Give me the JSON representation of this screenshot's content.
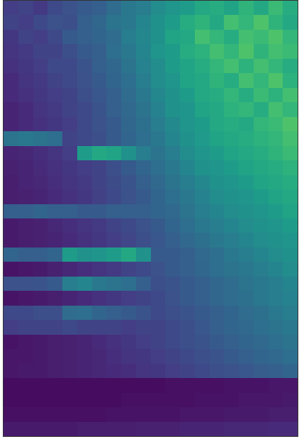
{
  "chart_data": {
    "type": "heatmap",
    "color": "Viridis",
    "tick_labels": false,
    "grid": false,
    "xlim": [
      -0.5,
      19.5
    ],
    "ylim": [
      29.5,
      -0.5
    ],
    "zlim": [
      0,
      1
    ],
    "cells": [
      [
        0.18,
        0.2,
        0.17,
        0.22,
        0.25,
        0.28,
        0.3,
        0.35,
        0.4,
        0.42,
        0.48,
        0.52,
        0.55,
        0.6,
        0.62,
        0.58,
        0.65,
        0.6,
        0.68,
        0.62
      ],
      [
        0.2,
        0.18,
        0.22,
        0.25,
        0.24,
        0.3,
        0.33,
        0.38,
        0.4,
        0.45,
        0.5,
        0.55,
        0.62,
        0.65,
        0.6,
        0.7,
        0.66,
        0.72,
        0.65,
        0.6
      ],
      [
        0.16,
        0.2,
        0.18,
        0.22,
        0.28,
        0.3,
        0.32,
        0.35,
        0.42,
        0.46,
        0.5,
        0.58,
        0.6,
        0.7,
        0.66,
        0.62,
        0.7,
        0.68,
        0.72,
        0.66
      ],
      [
        0.15,
        0.17,
        0.2,
        0.2,
        0.24,
        0.28,
        0.3,
        0.36,
        0.4,
        0.45,
        0.52,
        0.55,
        0.62,
        0.64,
        0.7,
        0.66,
        0.72,
        0.65,
        0.7,
        0.68
      ],
      [
        0.14,
        0.16,
        0.18,
        0.22,
        0.22,
        0.26,
        0.3,
        0.33,
        0.38,
        0.44,
        0.48,
        0.55,
        0.58,
        0.62,
        0.66,
        0.7,
        0.64,
        0.7,
        0.66,
        0.62
      ],
      [
        0.12,
        0.15,
        0.17,
        0.2,
        0.22,
        0.25,
        0.28,
        0.32,
        0.36,
        0.42,
        0.48,
        0.52,
        0.58,
        0.6,
        0.65,
        0.62,
        0.7,
        0.66,
        0.72,
        0.64
      ],
      [
        0.12,
        0.14,
        0.16,
        0.18,
        0.2,
        0.24,
        0.27,
        0.3,
        0.35,
        0.4,
        0.46,
        0.5,
        0.55,
        0.6,
        0.62,
        0.66,
        0.62,
        0.68,
        0.64,
        0.7
      ],
      [
        0.1,
        0.12,
        0.15,
        0.17,
        0.2,
        0.22,
        0.26,
        0.3,
        0.34,
        0.38,
        0.44,
        0.5,
        0.52,
        0.58,
        0.6,
        0.64,
        0.66,
        0.62,
        0.7,
        0.66
      ],
      [
        0.1,
        0.12,
        0.14,
        0.16,
        0.18,
        0.22,
        0.25,
        0.28,
        0.33,
        0.37,
        0.42,
        0.47,
        0.52,
        0.55,
        0.6,
        0.62,
        0.6,
        0.66,
        0.68,
        0.72
      ],
      [
        0.38,
        0.4,
        0.38,
        0.36,
        0.2,
        0.22,
        0.24,
        0.28,
        0.32,
        0.36,
        0.4,
        0.45,
        0.5,
        0.54,
        0.58,
        0.6,
        0.62,
        0.64,
        0.66,
        0.7
      ],
      [
        0.1,
        0.11,
        0.13,
        0.15,
        0.18,
        0.55,
        0.6,
        0.58,
        0.5,
        0.42,
        0.38,
        0.42,
        0.48,
        0.52,
        0.55,
        0.58,
        0.6,
        0.62,
        0.65,
        0.68
      ],
      [
        0.09,
        0.1,
        0.12,
        0.14,
        0.16,
        0.18,
        0.2,
        0.24,
        0.28,
        0.32,
        0.36,
        0.4,
        0.45,
        0.5,
        0.52,
        0.55,
        0.58,
        0.6,
        0.62,
        0.64
      ],
      [
        0.08,
        0.1,
        0.11,
        0.13,
        0.15,
        0.17,
        0.2,
        0.23,
        0.26,
        0.3,
        0.34,
        0.38,
        0.42,
        0.46,
        0.5,
        0.52,
        0.55,
        0.58,
        0.6,
        0.62
      ],
      [
        0.08,
        0.09,
        0.1,
        0.12,
        0.14,
        0.16,
        0.19,
        0.22,
        0.25,
        0.28,
        0.32,
        0.36,
        0.4,
        0.44,
        0.48,
        0.5,
        0.52,
        0.55,
        0.58,
        0.6
      ],
      [
        0.3,
        0.3,
        0.32,
        0.3,
        0.3,
        0.28,
        0.28,
        0.3,
        0.3,
        0.3,
        0.32,
        0.34,
        0.38,
        0.42,
        0.45,
        0.48,
        0.5,
        0.52,
        0.55,
        0.58
      ],
      [
        0.07,
        0.08,
        0.09,
        0.11,
        0.13,
        0.15,
        0.17,
        0.2,
        0.22,
        0.25,
        0.28,
        0.32,
        0.36,
        0.4,
        0.42,
        0.45,
        0.48,
        0.5,
        0.52,
        0.55
      ],
      [
        0.07,
        0.08,
        0.09,
        0.1,
        0.12,
        0.14,
        0.16,
        0.18,
        0.21,
        0.24,
        0.27,
        0.3,
        0.34,
        0.37,
        0.4,
        0.42,
        0.45,
        0.48,
        0.5,
        0.52
      ],
      [
        0.32,
        0.3,
        0.3,
        0.32,
        0.55,
        0.5,
        0.52,
        0.55,
        0.6,
        0.5,
        0.28,
        0.28,
        0.3,
        0.34,
        0.36,
        0.4,
        0.42,
        0.45,
        0.48,
        0.5
      ],
      [
        0.05,
        0.06,
        0.07,
        0.09,
        0.11,
        0.13,
        0.15,
        0.17,
        0.2,
        0.22,
        0.25,
        0.28,
        0.3,
        0.33,
        0.36,
        0.38,
        0.4,
        0.42,
        0.45,
        0.48
      ],
      [
        0.25,
        0.25,
        0.26,
        0.28,
        0.42,
        0.45,
        0.4,
        0.38,
        0.36,
        0.3,
        0.24,
        0.26,
        0.28,
        0.3,
        0.33,
        0.35,
        0.38,
        0.4,
        0.42,
        0.45
      ],
      [
        0.05,
        0.06,
        0.07,
        0.08,
        0.1,
        0.12,
        0.14,
        0.16,
        0.18,
        0.2,
        0.22,
        0.25,
        0.28,
        0.3,
        0.33,
        0.35,
        0.37,
        0.4,
        0.42,
        0.44
      ],
      [
        0.22,
        0.22,
        0.24,
        0.24,
        0.35,
        0.36,
        0.32,
        0.3,
        0.28,
        0.26,
        0.22,
        0.24,
        0.26,
        0.28,
        0.3,
        0.32,
        0.35,
        0.37,
        0.4,
        0.42
      ],
      [
        0.18,
        0.2,
        0.2,
        0.2,
        0.22,
        0.2,
        0.2,
        0.2,
        0.18,
        0.2,
        0.2,
        0.22,
        0.24,
        0.27,
        0.3,
        0.32,
        0.34,
        0.36,
        0.38,
        0.4
      ],
      [
        0.05,
        0.06,
        0.07,
        0.08,
        0.09,
        0.1,
        0.12,
        0.14,
        0.16,
        0.18,
        0.2,
        0.22,
        0.24,
        0.26,
        0.28,
        0.3,
        0.32,
        0.34,
        0.36,
        0.38
      ],
      [
        0.06,
        0.06,
        0.07,
        0.08,
        0.09,
        0.1,
        0.11,
        0.13,
        0.15,
        0.16,
        0.18,
        0.2,
        0.22,
        0.24,
        0.26,
        0.28,
        0.3,
        0.32,
        0.34,
        0.36
      ],
      [
        0.06,
        0.07,
        0.07,
        0.08,
        0.09,
        0.1,
        0.11,
        0.12,
        0.13,
        0.15,
        0.16,
        0.18,
        0.2,
        0.22,
        0.24,
        0.25,
        0.27,
        0.29,
        0.3,
        0.32
      ],
      [
        0.03,
        0.03,
        0.03,
        0.03,
        0.03,
        0.03,
        0.03,
        0.03,
        0.03,
        0.03,
        0.03,
        0.04,
        0.04,
        0.04,
        0.04,
        0.05,
        0.05,
        0.05,
        0.06,
        0.06
      ],
      [
        0.03,
        0.03,
        0.03,
        0.03,
        0.03,
        0.03,
        0.03,
        0.03,
        0.04,
        0.04,
        0.04,
        0.04,
        0.04,
        0.05,
        0.05,
        0.05,
        0.06,
        0.06,
        0.06,
        0.07
      ],
      [
        0.04,
        0.04,
        0.04,
        0.04,
        0.04,
        0.04,
        0.04,
        0.05,
        0.05,
        0.05,
        0.05,
        0.05,
        0.06,
        0.06,
        0.06,
        0.07,
        0.07,
        0.07,
        0.08,
        0.08
      ],
      [
        0.07,
        0.07,
        0.07,
        0.07,
        0.07,
        0.08,
        0.08,
        0.08,
        0.08,
        0.09,
        0.09,
        0.09,
        0.1,
        0.1,
        0.1,
        0.11,
        0.11,
        0.11,
        0.12,
        0.12
      ]
    ]
  }
}
